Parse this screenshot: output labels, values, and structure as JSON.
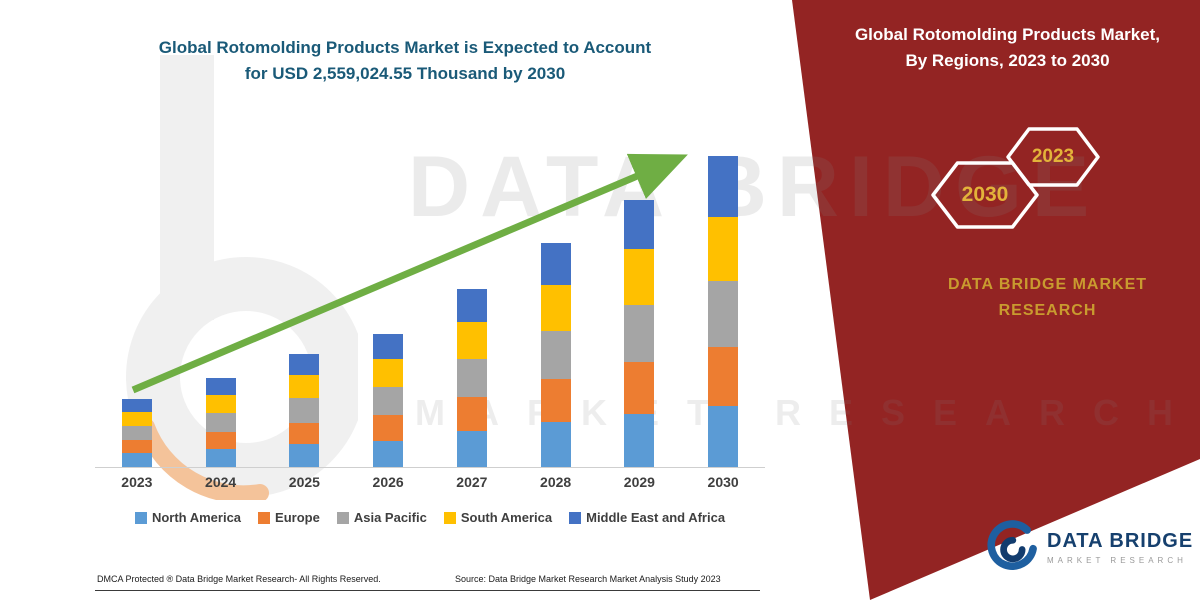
{
  "left_title": {
    "line1": "Global Rotomolding Products Market is Expected to Account",
    "line2": "for USD 2,559,024.55 Thousand by 2030"
  },
  "right_panel": {
    "title": "Global Rotomolding Products Market, By Regions, 2023 to 2030",
    "hexagons": [
      {
        "year": "2030"
      },
      {
        "year": "2023"
      }
    ],
    "brand_line1": "DATA BRIDGE MARKET",
    "brand_line2": "RESEARCH",
    "panel_color": "#932423",
    "gold_color": "#c99b2f"
  },
  "watermark": {
    "line1": "DATA BRIDGE",
    "line2": "MARKET RESEARCH"
  },
  "footer": {
    "dmca": "DMCA Protected ® Data Bridge Market Research-  All Rights Reserved.",
    "source": "Source: Data Bridge Market Research  Market Analysis Study 2023"
  },
  "logo": {
    "name": "DATA BRIDGE",
    "tagline": "MARKET RESEARCH"
  },
  "chart_data": {
    "type": "bar",
    "stacked": true,
    "title": "Global Rotomolding Products Market is Expected to Account for USD 2,559,024.55 Thousand by 2030",
    "unit": "USD Thousand",
    "categories": [
      "2023",
      "2024",
      "2025",
      "2026",
      "2027",
      "2028",
      "2029",
      "2030"
    ],
    "series": [
      {
        "name": "North America",
        "color": "#5b9bd5",
        "values": [
          112000,
          146000,
          186000,
          218000,
          293000,
          368000,
          440000,
          500000
        ]
      },
      {
        "name": "Europe",
        "color": "#ed7d31",
        "values": [
          108000,
          142000,
          180000,
          212000,
          284000,
          357000,
          427000,
          490000
        ]
      },
      {
        "name": "Asia Pacific",
        "color": "#a5a5a5",
        "values": [
          120000,
          156000,
          198000,
          232000,
          312000,
          392000,
          468000,
          540000
        ]
      },
      {
        "name": "South America",
        "color": "#ffc000",
        "values": [
          116000,
          152000,
          192000,
          226000,
          303000,
          381000,
          455000,
          530000
        ]
      },
      {
        "name": "Middle East and Africa",
        "color": "#4472c4",
        "values": [
          106000,
          137000,
          173000,
          204000,
          274000,
          344000,
          410000,
          499024.55
        ]
      }
    ],
    "totals_estimated": [
      562000,
      733000,
      929000,
      1092000,
      1466000,
      1842000,
      2200000,
      2559024.55
    ],
    "final_value_label": "2,559,024.55",
    "ylim": [
      0,
      2600000
    ],
    "xlabel": "",
    "ylabel": "",
    "grid": false,
    "legend_position": "bottom",
    "trend_arrow_color": "#6fae44",
    "note": "Per-region values estimated from bar segment heights; 2030 total labeled in title."
  }
}
